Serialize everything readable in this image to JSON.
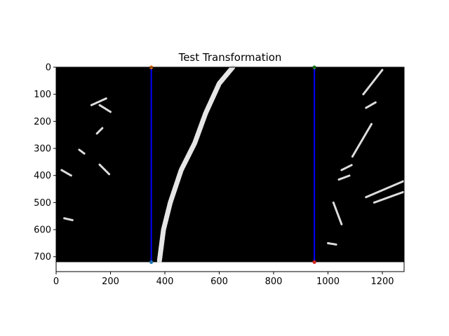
{
  "chart_data": {
    "type": "image",
    "title": "Test Transformation",
    "xlabel": "",
    "ylabel": "",
    "xlim": [
      0,
      1280
    ],
    "ylim": [
      755,
      0
    ],
    "image_extent": {
      "x": [
        0,
        1280
      ],
      "y": [
        720,
        0
      ]
    },
    "x_ticks": [
      0,
      200,
      400,
      600,
      800,
      1000,
      1200
    ],
    "y_ticks": [
      0,
      100,
      200,
      300,
      400,
      500,
      600,
      700
    ],
    "grid": false,
    "series": [
      {
        "type": "line",
        "color": "#0000ff",
        "points": [
          [
            350,
            0
          ],
          [
            350,
            720
          ]
        ]
      },
      {
        "type": "line",
        "color": "#0000ff",
        "points": [
          [
            950,
            0
          ],
          [
            950,
            720
          ]
        ]
      }
    ],
    "markers": [
      {
        "x": 350,
        "y": 0,
        "color": "#ff7f0e"
      },
      {
        "x": 950,
        "y": 0,
        "color": "#2ca02c"
      },
      {
        "x": 350,
        "y": 720,
        "color": "#1f77b4"
      },
      {
        "x": 950,
        "y": 720,
        "color": "#d62728"
      }
    ],
    "image_features": {
      "left_lane_path": [
        [
          650,
          0
        ],
        [
          600,
          60
        ],
        [
          550,
          170
        ],
        [
          510,
          280
        ],
        [
          460,
          380
        ],
        [
          420,
          500
        ],
        [
          395,
          600
        ],
        [
          380,
          715
        ]
      ],
      "fragments": [
        [
          [
            130,
            140
          ],
          [
            185,
            115
          ]
        ],
        [
          [
            160,
            140
          ],
          [
            200,
            165
          ]
        ],
        [
          [
            150,
            245
          ],
          [
            170,
            225
          ]
        ],
        [
          [
            85,
            305
          ],
          [
            105,
            320
          ]
        ],
        [
          [
            160,
            360
          ],
          [
            195,
            395
          ]
        ],
        [
          [
            20,
            380
          ],
          [
            55,
            400
          ]
        ],
        [
          [
            1130,
            100
          ],
          [
            1200,
            10
          ]
        ],
        [
          [
            1140,
            150
          ],
          [
            1175,
            130
          ]
        ],
        [
          [
            1090,
            330
          ],
          [
            1160,
            210
          ]
        ],
        [
          [
            1050,
            380
          ],
          [
            1090,
            360
          ]
        ],
        [
          [
            1040,
            415
          ],
          [
            1080,
            400
          ]
        ],
        [
          [
            1140,
            480
          ],
          [
            1280,
            420
          ]
        ],
        [
          [
            1170,
            500
          ],
          [
            1280,
            460
          ]
        ],
        [
          [
            1020,
            500
          ],
          [
            1050,
            580
          ]
        ],
        [
          [
            1000,
            650
          ],
          [
            1030,
            655
          ]
        ],
        [
          [
            30,
            558
          ],
          [
            60,
            565
          ]
        ]
      ]
    }
  }
}
